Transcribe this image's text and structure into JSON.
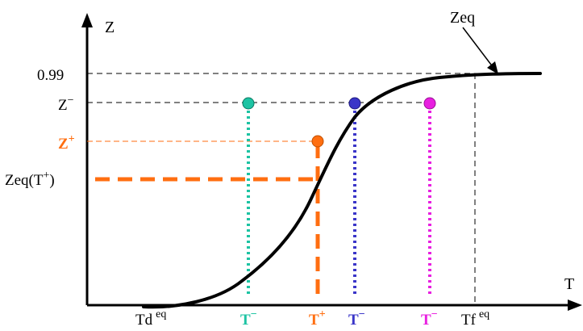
{
  "axes": {
    "y_label": "Z",
    "x_label": "T"
  },
  "y_ticks": {
    "v099": "0.99",
    "zminus_base": "Z",
    "zminus_sup": "−",
    "zplus_base": "Z",
    "zplus_sup": "+",
    "zeq_t": "Zeq(T",
    "zeq_t_sup": "+",
    "zeq_t_close": ")"
  },
  "curve_label": "Zeq",
  "x_ticks": {
    "td_base": "Td",
    "td_sup": "eq",
    "t1_base": "T",
    "t1_sup": "−",
    "tplus_base": "T",
    "tplus_sup": "+",
    "t2_base": "T",
    "t2_sup": "−",
    "t3_base": "T",
    "t3_sup": "−",
    "tf_base": "Tf",
    "tf_sup": "eq"
  },
  "colors": {
    "axis": "#000000",
    "teal": "#1dc3a3",
    "orange": "#ff6e10",
    "blue": "#3a35c8",
    "magenta": "#e81fe0"
  }
}
